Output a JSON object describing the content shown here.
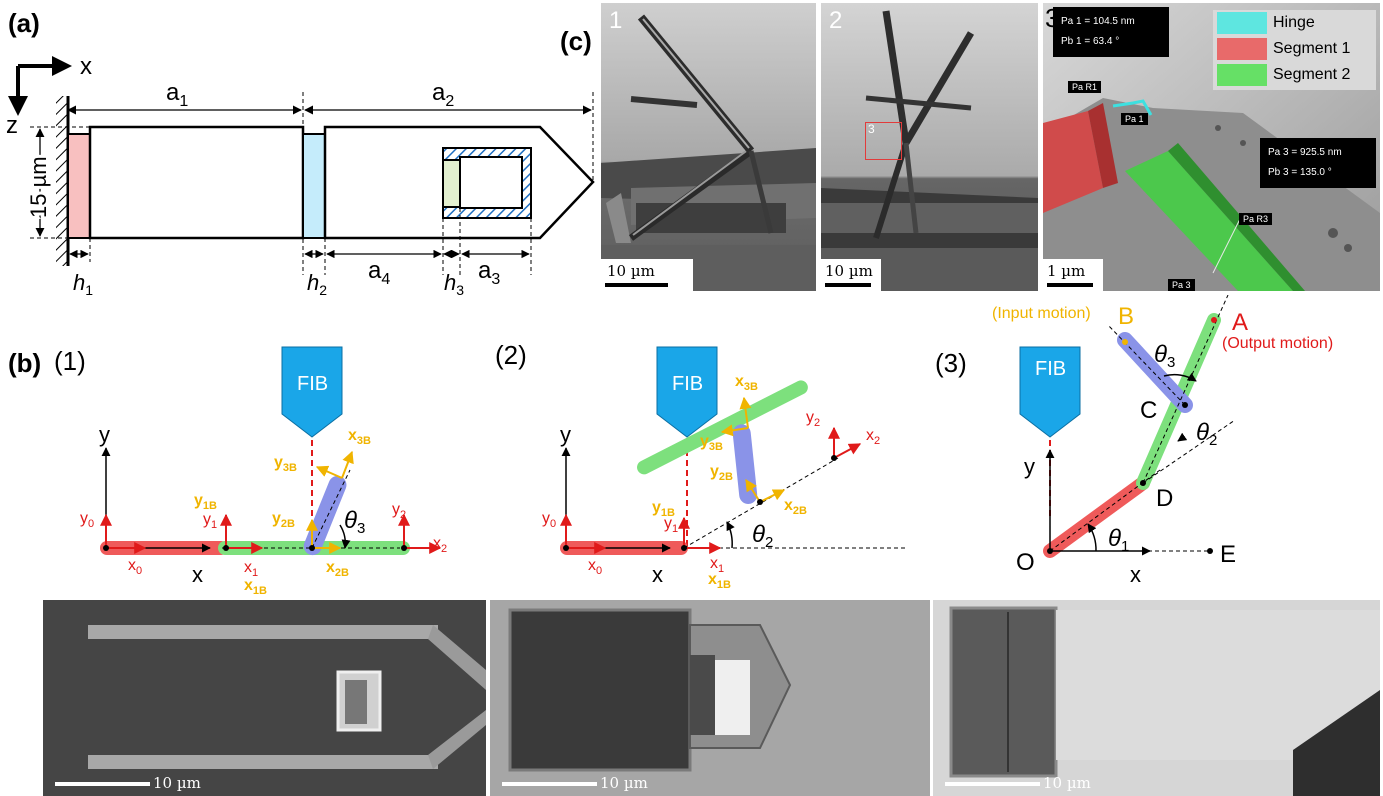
{
  "labels": {
    "a": "(a)",
    "b": "(b)",
    "c": "(c)",
    "b1": "(1)",
    "b2": "(2)",
    "b3": "(3)"
  },
  "panel_a": {
    "x_axis": "x",
    "z_axis": "z",
    "a1": "a",
    "a1_sub": "1",
    "a2": "a",
    "a2_sub": "2",
    "a3": "a",
    "a3_sub": "3",
    "a4": "a",
    "a4_sub": "4",
    "h1": "h",
    "h1_sub": "1",
    "h2": "h",
    "h2_sub": "2",
    "h3": "h",
    "h3_sub": "3",
    "thickness": "15 µm"
  },
  "panel_c": {
    "img1_num": "1",
    "img2_num": "2",
    "img3_num": "3",
    "inset_marker": "3",
    "scale1": "10 µm",
    "scale2": "10 µm",
    "scale3": "1 µm",
    "legend": [
      {
        "label": "Hinge",
        "color": "#5ee6e0"
      },
      {
        "label": "Segment 1",
        "color": "#e86a6a"
      },
      {
        "label": "Segment 2",
        "color": "#66e066"
      }
    ],
    "meas1_line1": "Pa 1 = 104.5 nm",
    "meas1_line2": "Pb 1 = 63.4 °",
    "meas2_line1": "Pa 3 = 925.5 nm",
    "meas2_line2": "Pb 3 = 135.0 °",
    "tag_r1": "Pa R1",
    "tag_1": "Pa 1",
    "tag_r3": "Pa R3",
    "tag_3": "Pa 3"
  },
  "panel_b": {
    "fib": "FIB",
    "b1": {
      "y": "y",
      "x": "x",
      "y0": "y",
      "y0_sub": "0",
      "x0": "x",
      "x0_sub": "0",
      "y1": "y",
      "y1_sub": "1",
      "x1": "x",
      "x1_sub": "1",
      "y1b": "y",
      "y1b_sub": "1B",
      "x1b": "x",
      "x1b_sub": "1B",
      "y2": "y",
      "y2_sub": "2",
      "x2": "x",
      "x2_sub": "2",
      "y2b": "y",
      "y2b_sub": "2B",
      "x2b": "x",
      "x2b_sub": "2B",
      "y3b": "y",
      "y3b_sub": "3B",
      "x3b": "x",
      "x3b_sub": "3B",
      "theta3": "θ",
      "theta3_sub": "3"
    },
    "b2": {
      "y": "y",
      "x": "x",
      "y0": "y",
      "y0_sub": "0",
      "x0": "x",
      "x0_sub": "0",
      "y1": "y",
      "y1_sub": "1",
      "x1": "x",
      "x1_sub": "1",
      "y1b": "y",
      "y1b_sub": "1B",
      "x1b": "x",
      "x1b_sub": "1B",
      "y2": "y",
      "y2_sub": "2",
      "x2": "x",
      "x2_sub": "2",
      "y2b": "y",
      "y2b_sub": "2B",
      "x2b": "x",
      "x2b_sub": "2B",
      "y3b": "y",
      "y3b_sub": "3B",
      "x3b": "x",
      "x3b_sub": "3B",
      "theta2": "θ",
      "theta2_sub": "2"
    },
    "b3": {
      "y": "y",
      "x": "x",
      "O": "O",
      "D": "D",
      "C": "C",
      "E": "E",
      "A": "A",
      "B": "B",
      "theta1": "θ",
      "theta1_sub": "1",
      "theta2": "θ",
      "theta2_sub": "2",
      "theta3": "θ",
      "theta3_sub": "3",
      "input": "(Input motion)",
      "output": "(Output motion)"
    },
    "scale1": "10 µm",
    "scale2": "10 µm",
    "scale3": "10 µm"
  }
}
